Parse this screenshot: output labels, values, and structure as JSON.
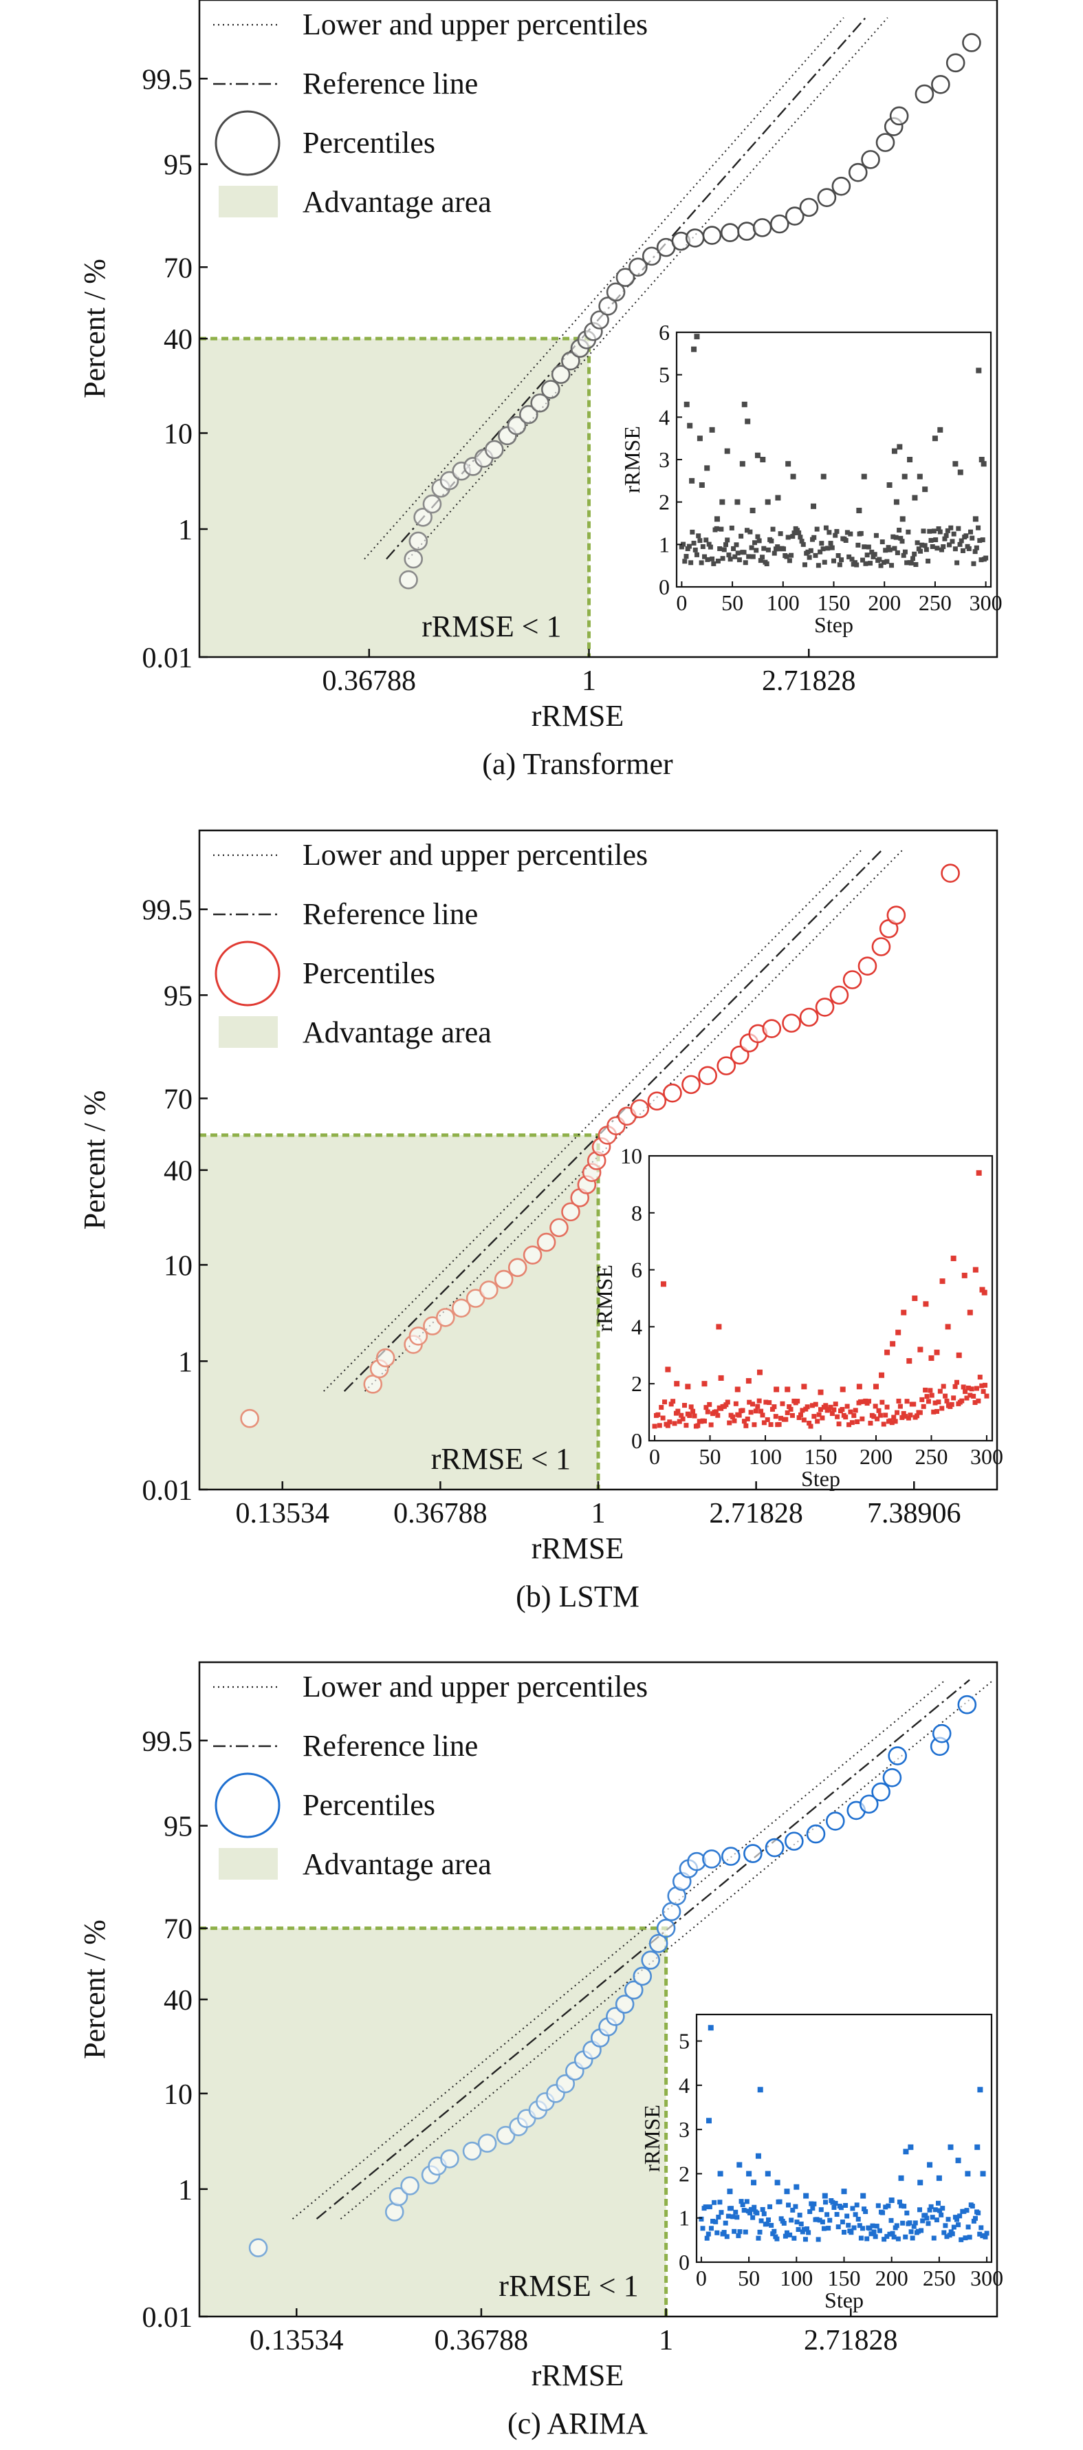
{
  "figure": {
    "background": "#ffffff",
    "advantage_fill": "#e6ebd8",
    "advantage_edge": "#8fb04a"
  },
  "chart_data": [
    {
      "type": "scatter",
      "subtype": "probability-plot",
      "caption": "(a) Transformer",
      "xlabel": "rRMSE",
      "ylabel": "Percent / %",
      "x_scale": "log (natural)",
      "x_ticks": [
        0.36788,
        1,
        2.71828
      ],
      "x_tick_labels": [
        "0.36788",
        "1",
        "2.71828"
      ],
      "xlim": [
        0.17,
        6.4
      ],
      "y_scale": "normal probability",
      "y_ticks": [
        0.01,
        1,
        10,
        40,
        70,
        95,
        99.5
      ],
      "y_tick_labels": [
        "0.01",
        "1",
        "10",
        "40",
        "70",
        "95",
        "99.5"
      ],
      "ylim": [
        0.01,
        99.97
      ],
      "colors": {
        "low": "#8a8a8a",
        "high": "#4a4a4a"
      },
      "legend": {
        "position": "top-left",
        "entries": [
          "Lower and upper percentiles",
          "Reference line",
          "Percentiles",
          "Advantage area"
        ]
      },
      "annotation": "rRMSE < 1",
      "advantage_percent": 40,
      "reference": {
        "mu": 0.06,
        "sigma": 0.37,
        "band": 0.1
      },
      "percentiles_scatter": [
        [
          0.44,
          0.2
        ],
        [
          0.45,
          0.4
        ],
        [
          0.46,
          0.7
        ],
        [
          0.47,
          1.4
        ],
        [
          0.49,
          2.0
        ],
        [
          0.51,
          3.0
        ],
        [
          0.53,
          3.6
        ],
        [
          0.56,
          4.5
        ],
        [
          0.59,
          5.0
        ],
        [
          0.62,
          6.0
        ],
        [
          0.65,
          7.2
        ],
        [
          0.69,
          9.5
        ],
        [
          0.72,
          11.5
        ],
        [
          0.76,
          14.0
        ],
        [
          0.8,
          17.0
        ],
        [
          0.84,
          21.0
        ],
        [
          0.88,
          26.0
        ],
        [
          0.92,
          31.0
        ],
        [
          0.96,
          36.0
        ],
        [
          0.99,
          39.5
        ],
        [
          1.02,
          43.0
        ],
        [
          1.05,
          48.0
        ],
        [
          1.09,
          54.0
        ],
        [
          1.13,
          60.0
        ],
        [
          1.18,
          66.0
        ],
        [
          1.25,
          70.0
        ],
        [
          1.33,
          74.0
        ],
        [
          1.42,
          77.0
        ],
        [
          1.52,
          79.0
        ],
        [
          1.62,
          80.0
        ],
        [
          1.75,
          80.8
        ],
        [
          1.9,
          81.6
        ],
        [
          2.05,
          82.0
        ],
        [
          2.2,
          83.0
        ],
        [
          2.38,
          84.0
        ],
        [
          2.55,
          86.0
        ],
        [
          2.72,
          88.0
        ],
        [
          2.95,
          90.0
        ],
        [
          3.15,
          92.0
        ],
        [
          3.4,
          94.0
        ],
        [
          3.6,
          95.5
        ],
        [
          3.85,
          97.0
        ],
        [
          4.0,
          98.0
        ],
        [
          4.1,
          98.5
        ],
        [
          4.6,
          99.2
        ],
        [
          4.95,
          99.4
        ],
        [
          5.3,
          99.7
        ],
        [
          5.7,
          99.85
        ]
      ],
      "inset": {
        "xlabel": "Step",
        "ylabel": "rRMSE",
        "x_ticks": [
          0,
          50,
          100,
          150,
          200,
          250,
          300
        ],
        "y_ticks": [
          0,
          1,
          2,
          3,
          4,
          5,
          6
        ],
        "y_tick_labels": [
          "0",
          "1",
          "2",
          "3",
          "4",
          "5",
          "6"
        ],
        "xlim": [
          -5,
          305
        ],
        "ylim": [
          0,
          6
        ],
        "color": "#4a4a4a",
        "values": [
          [
            5,
            4.3
          ],
          [
            8,
            3.8
          ],
          [
            10,
            2.5
          ],
          [
            12,
            5.6
          ],
          [
            15,
            5.9
          ],
          [
            18,
            3.5
          ],
          [
            20,
            2.4
          ],
          [
            25,
            2.8
          ],
          [
            30,
            3.7
          ],
          [
            35,
            1.6
          ],
          [
            40,
            2.0
          ],
          [
            45,
            3.2
          ],
          [
            55,
            2.0
          ],
          [
            60,
            2.9
          ],
          [
            62,
            4.3
          ],
          [
            65,
            3.9
          ],
          [
            70,
            1.8
          ],
          [
            75,
            3.1
          ],
          [
            80,
            3.0
          ],
          [
            85,
            2.0
          ],
          [
            95,
            2.1
          ],
          [
            105,
            2.9
          ],
          [
            110,
            2.6
          ],
          [
            130,
            1.9
          ],
          [
            140,
            2.6
          ],
          [
            175,
            1.8
          ],
          [
            180,
            2.6
          ],
          [
            205,
            2.4
          ],
          [
            210,
            3.2
          ],
          [
            212,
            2.0
          ],
          [
            215,
            3.3
          ],
          [
            218,
            1.6
          ],
          [
            220,
            2.6
          ],
          [
            225,
            3.0
          ],
          [
            230,
            2.1
          ],
          [
            235,
            2.6
          ],
          [
            240,
            2.3
          ],
          [
            250,
            3.5
          ],
          [
            255,
            3.7
          ],
          [
            270,
            2.9
          ],
          [
            275,
            2.7
          ],
          [
            290,
            1.6
          ],
          [
            293,
            5.1
          ],
          [
            296,
            3.0
          ],
          [
            298,
            2.9
          ]
        ]
      }
    },
    {
      "type": "scatter",
      "subtype": "probability-plot",
      "caption": "(b) LSTM",
      "xlabel": "rRMSE",
      "ylabel": "Percent / %",
      "x_scale": "log (natural)",
      "x_ticks": [
        0.13534,
        0.36788,
        1,
        2.71828,
        7.38906
      ],
      "x_tick_labels": [
        "0.13534",
        "0.36788",
        "1",
        "2.71828",
        "7.38906"
      ],
      "xlim": [
        0.08,
        12.5
      ],
      "y_scale": "normal probability",
      "y_ticks": [
        0.01,
        1,
        10,
        40,
        70,
        95,
        99.5
      ],
      "y_tick_labels": [
        "0.01",
        "1",
        "10",
        "40",
        "70",
        "95",
        "99.5"
      ],
      "ylim": [
        0.01,
        99.97
      ],
      "colors": {
        "low": "#e6907a",
        "high": "#e03a32"
      },
      "legend": {
        "position": "top-left",
        "entries": [
          "Lower and upper percentiles",
          "Reference line",
          "Percentiles",
          "Advantage area"
        ]
      },
      "annotation": "rRMSE < 1",
      "advantage_percent": 55,
      "reference": {
        "mu": -0.07,
        "sigma": 0.58,
        "band": 0.13
      },
      "percentiles_scatter": [
        [
          0.11,
          0.16
        ],
        [
          0.24,
          0.5
        ],
        [
          0.25,
          0.8
        ],
        [
          0.26,
          1.1
        ],
        [
          0.31,
          1.6
        ],
        [
          0.32,
          2.0
        ],
        [
          0.35,
          2.6
        ],
        [
          0.38,
          3.2
        ],
        [
          0.42,
          4.0
        ],
        [
          0.46,
          5.0
        ],
        [
          0.5,
          6.0
        ],
        [
          0.55,
          7.5
        ],
        [
          0.6,
          9.5
        ],
        [
          0.66,
          12.0
        ],
        [
          0.72,
          15.0
        ],
        [
          0.78,
          19.0
        ],
        [
          0.84,
          24.0
        ],
        [
          0.89,
          29.0
        ],
        [
          0.93,
          34.0
        ],
        [
          0.96,
          39.0
        ],
        [
          0.99,
          44.0
        ],
        [
          1.02,
          50.0
        ],
        [
          1.06,
          55.0
        ],
        [
          1.12,
          59.0
        ],
        [
          1.2,
          63.0
        ],
        [
          1.3,
          66.0
        ],
        [
          1.45,
          69.0
        ],
        [
          1.6,
          72.0
        ],
        [
          1.8,
          75.0
        ],
        [
          2.0,
          78.0
        ],
        [
          2.25,
          81.0
        ],
        [
          2.45,
          84.0
        ],
        [
          2.6,
          87.0
        ],
        [
          2.75,
          89.0
        ],
        [
          3.0,
          90.0
        ],
        [
          3.4,
          91.0
        ],
        [
          3.8,
          92.0
        ],
        [
          4.2,
          93.5
        ],
        [
          4.6,
          95.0
        ],
        [
          5.0,
          96.5
        ],
        [
          5.5,
          97.5
        ],
        [
          6.0,
          98.5
        ],
        [
          6.3,
          99.1
        ],
        [
          6.6,
          99.4
        ],
        [
          9.3,
          99.85
        ]
      ],
      "inset": {
        "xlabel": "Step",
        "ylabel": "rRMSE",
        "x_ticks": [
          0,
          50,
          100,
          150,
          200,
          250,
          300
        ],
        "y_ticks": [
          0,
          2,
          4,
          6,
          8,
          10
        ],
        "y_tick_labels": [
          "0",
          "2",
          "4",
          "6",
          "8",
          "10"
        ],
        "xlim": [
          -5,
          305
        ],
        "ylim": [
          0,
          10
        ],
        "color": "#e03a32",
        "values": [
          [
            8,
            5.5
          ],
          [
            12,
            2.5
          ],
          [
            20,
            2.0
          ],
          [
            30,
            1.9
          ],
          [
            45,
            2.0
          ],
          [
            58,
            4.0
          ],
          [
            60,
            2.2
          ],
          [
            75,
            1.8
          ],
          [
            85,
            2.1
          ],
          [
            95,
            2.4
          ],
          [
            110,
            1.8
          ],
          [
            120,
            1.8
          ],
          [
            135,
            1.9
          ],
          [
            150,
            1.7
          ],
          [
            170,
            1.8
          ],
          [
            185,
            1.9
          ],
          [
            200,
            1.9
          ],
          [
            205,
            2.3
          ],
          [
            210,
            3.1
          ],
          [
            215,
            3.4
          ],
          [
            220,
            3.8
          ],
          [
            225,
            4.5
          ],
          [
            230,
            2.8
          ],
          [
            235,
            5.0
          ],
          [
            240,
            3.2
          ],
          [
            245,
            4.8
          ],
          [
            250,
            2.9
          ],
          [
            255,
            3.1
          ],
          [
            260,
            5.6
          ],
          [
            265,
            4.0
          ],
          [
            270,
            6.4
          ],
          [
            275,
            3.0
          ],
          [
            280,
            5.8
          ],
          [
            285,
            4.5
          ],
          [
            290,
            6.0
          ],
          [
            293,
            9.4
          ],
          [
            296,
            5.3
          ],
          [
            298,
            5.2
          ]
        ]
      }
    },
    {
      "type": "scatter",
      "subtype": "probability-plot",
      "caption": "(c) ARIMA",
      "xlabel": "rRMSE",
      "ylabel": "Percent / %",
      "x_scale": "log (natural)",
      "x_ticks": [
        0.13534,
        0.36788,
        1,
        2.71828
      ],
      "x_tick_labels": [
        "0.13534",
        "0.36788",
        "1",
        "2.71828"
      ],
      "xlim": [
        0.08,
        6.0
      ],
      "y_scale": "normal probability",
      "y_ticks": [
        0.01,
        1,
        10,
        40,
        70,
        95,
        99.5
      ],
      "y_tick_labels": [
        "0.01",
        "1",
        "10",
        "40",
        "70",
        "95",
        "99.5"
      ],
      "ylim": [
        0.01,
        99.97
      ],
      "colors": {
        "low": "#7aa9d8",
        "high": "#1e6fd0"
      },
      "legend": {
        "position": "top-left",
        "entries": [
          "Lower and upper percentiles",
          "Reference line",
          "Percentiles",
          "Advantage area"
        ]
      },
      "annotation": "rRMSE < 1",
      "advantage_percent": 70,
      "reference": {
        "mu": -0.3,
        "sigma": 0.6,
        "band": 0.13
      },
      "percentiles_scatter": [
        [
          0.11,
          0.15
        ],
        [
          0.23,
          0.5
        ],
        [
          0.235,
          0.8
        ],
        [
          0.25,
          1.1
        ],
        [
          0.28,
          1.5
        ],
        [
          0.29,
          1.9
        ],
        [
          0.31,
          2.3
        ],
        [
          0.35,
          2.8
        ],
        [
          0.38,
          3.4
        ],
        [
          0.42,
          4.1
        ],
        [
          0.45,
          5.0
        ],
        [
          0.47,
          6.0
        ],
        [
          0.5,
          7.2
        ],
        [
          0.52,
          8.5
        ],
        [
          0.55,
          10.0
        ],
        [
          0.58,
          12.0
        ],
        [
          0.61,
          15.0
        ],
        [
          0.64,
          18.0
        ],
        [
          0.67,
          21.0
        ],
        [
          0.7,
          25.0
        ],
        [
          0.73,
          29.0
        ],
        [
          0.76,
          33.0
        ],
        [
          0.8,
          38.0
        ],
        [
          0.84,
          44.0
        ],
        [
          0.88,
          50.0
        ],
        [
          0.92,
          57.0
        ],
        [
          0.96,
          64.0
        ],
        [
          1.0,
          70.0
        ],
        [
          1.03,
          76.0
        ],
        [
          1.06,
          81.0
        ],
        [
          1.09,
          85.0
        ],
        [
          1.13,
          88.0
        ],
        [
          1.18,
          89.5
        ],
        [
          1.28,
          90.0
        ],
        [
          1.42,
          90.5
        ],
        [
          1.6,
          91.0
        ],
        [
          1.8,
          92.0
        ],
        [
          2.0,
          93.0
        ],
        [
          2.25,
          94.0
        ],
        [
          2.5,
          95.5
        ],
        [
          2.8,
          96.5
        ],
        [
          3.0,
          97.0
        ],
        [
          3.2,
          97.8
        ],
        [
          3.4,
          98.5
        ],
        [
          3.5,
          99.2
        ],
        [
          4.4,
          99.4
        ],
        [
          4.45,
          99.6
        ],
        [
          5.1,
          99.85
        ]
      ],
      "inset": {
        "xlabel": "Step",
        "ylabel": "rRMSE",
        "x_ticks": [
          0,
          50,
          100,
          150,
          200,
          250,
          300
        ],
        "y_ticks": [
          0,
          1,
          2,
          3,
          4,
          5
        ],
        "y_tick_labels": [
          "0",
          "1",
          "2",
          "3",
          "4",
          "5"
        ],
        "xlim": [
          -5,
          305
        ],
        "ylim": [
          0,
          5.6
        ],
        "color": "#1e6fd0",
        "values": [
          [
            8,
            3.2
          ],
          [
            10,
            5.3
          ],
          [
            20,
            2.0
          ],
          [
            30,
            1.6
          ],
          [
            40,
            2.2
          ],
          [
            50,
            2.0
          ],
          [
            55,
            1.8
          ],
          [
            60,
            2.4
          ],
          [
            62,
            3.9
          ],
          [
            70,
            2.0
          ],
          [
            80,
            1.8
          ],
          [
            90,
            1.6
          ],
          [
            100,
            1.7
          ],
          [
            110,
            1.5
          ],
          [
            130,
            1.5
          ],
          [
            150,
            1.6
          ],
          [
            170,
            1.5
          ],
          [
            200,
            1.4
          ],
          [
            210,
            1.9
          ],
          [
            215,
            2.5
          ],
          [
            220,
            2.6
          ],
          [
            230,
            1.8
          ],
          [
            240,
            2.2
          ],
          [
            250,
            1.9
          ],
          [
            262,
            2.6
          ],
          [
            270,
            2.3
          ],
          [
            280,
            2.0
          ],
          [
            290,
            2.6
          ],
          [
            293,
            3.9
          ],
          [
            296,
            2.0
          ]
        ]
      }
    }
  ]
}
